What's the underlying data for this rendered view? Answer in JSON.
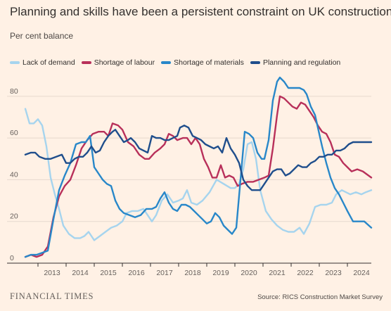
{
  "title": "Planning and skills have been a persistent constraint on UK construction",
  "subtitle": "Per cent balance",
  "brand": "FINANCIAL TIMES",
  "source": "Source: RICS Construction Market Survey",
  "colors": {
    "background": "#fff1e5",
    "grid": "#e6d9ce",
    "axis": "#33302e",
    "lack_of_demand": "#a6d4ee",
    "shortage_of_labour": "#b8305a",
    "shortage_of_materials": "#2887c9",
    "planning_and_regulation": "#1f4e8c"
  },
  "chart_data": {
    "type": "line",
    "title": "Planning and skills have been a persistent constraint on UK construction",
    "ylabel": "Per cent balance",
    "xlim": [
      2012.55,
      2024.85
    ],
    "ylim": [
      0,
      85
    ],
    "yticks": [
      0,
      20,
      40,
      60,
      80
    ],
    "xticks": [
      "2013",
      "2014",
      "2015",
      "2016",
      "2017",
      "2018",
      "2019",
      "2020",
      "2021",
      "2022",
      "2023",
      "2024"
    ],
    "grid": true,
    "legend_position": "top-left",
    "series": [
      {
        "name": "Lack of demand",
        "color": "#a6d4ee",
        "points": [
          [
            2012.55,
            74
          ],
          [
            2012.7,
            67
          ],
          [
            2012.85,
            67
          ],
          [
            2013.0,
            69
          ],
          [
            2013.15,
            66
          ],
          [
            2013.3,
            56
          ],
          [
            2013.45,
            41
          ],
          [
            2013.6,
            33
          ],
          [
            2013.75,
            26
          ],
          [
            2013.9,
            18
          ],
          [
            2014.1,
            14
          ],
          [
            2014.3,
            12
          ],
          [
            2014.5,
            12
          ],
          [
            2014.65,
            13
          ],
          [
            2014.8,
            15
          ],
          [
            2015.0,
            11
          ],
          [
            2015.2,
            13
          ],
          [
            2015.4,
            15
          ],
          [
            2015.6,
            17
          ],
          [
            2015.8,
            18
          ],
          [
            2016.0,
            20
          ],
          [
            2016.15,
            24
          ],
          [
            2016.35,
            25
          ],
          [
            2016.55,
            25
          ],
          [
            2016.75,
            26
          ],
          [
            2016.9,
            23
          ],
          [
            2017.05,
            20
          ],
          [
            2017.2,
            23
          ],
          [
            2017.4,
            30
          ],
          [
            2017.6,
            33
          ],
          [
            2017.8,
            29
          ],
          [
            2018.0,
            30
          ],
          [
            2018.15,
            31
          ],
          [
            2018.3,
            35
          ],
          [
            2018.45,
            29
          ],
          [
            2018.65,
            28
          ],
          [
            2018.85,
            30
          ],
          [
            2019.1,
            34
          ],
          [
            2019.35,
            40
          ],
          [
            2019.6,
            38
          ],
          [
            2019.85,
            36
          ],
          [
            2020.0,
            36
          ],
          [
            2020.15,
            38
          ],
          [
            2020.3,
            45
          ],
          [
            2020.45,
            57
          ],
          [
            2020.6,
            58
          ],
          [
            2020.75,
            50
          ],
          [
            2020.9,
            35
          ],
          [
            2021.1,
            25
          ],
          [
            2021.3,
            21
          ],
          [
            2021.5,
            18
          ],
          [
            2021.7,
            16
          ],
          [
            2021.9,
            15
          ],
          [
            2022.1,
            15
          ],
          [
            2022.3,
            17
          ],
          [
            2022.45,
            14
          ],
          [
            2022.65,
            19
          ],
          [
            2022.85,
            27
          ],
          [
            2023.05,
            28
          ],
          [
            2023.25,
            28
          ],
          [
            2023.45,
            29
          ],
          [
            2023.6,
            33
          ],
          [
            2023.8,
            35
          ],
          [
            2023.95,
            34
          ],
          [
            2024.1,
            33
          ],
          [
            2024.3,
            34
          ],
          [
            2024.5,
            33
          ],
          [
            2024.65,
            34
          ],
          [
            2024.85,
            35
          ]
        ]
      },
      {
        "name": "Shortage of labour",
        "color": "#b8305a",
        "points": [
          [
            2012.55,
            3
          ],
          [
            2012.75,
            4
          ],
          [
            2012.95,
            3
          ],
          [
            2013.15,
            4
          ],
          [
            2013.35,
            8
          ],
          [
            2013.55,
            22
          ],
          [
            2013.75,
            32
          ],
          [
            2013.95,
            37
          ],
          [
            2014.15,
            40
          ],
          [
            2014.35,
            47
          ],
          [
            2014.55,
            55
          ],
          [
            2014.75,
            59
          ],
          [
            2014.95,
            62
          ],
          [
            2015.15,
            63
          ],
          [
            2015.35,
            63
          ],
          [
            2015.5,
            61
          ],
          [
            2015.65,
            67
          ],
          [
            2015.85,
            66
          ],
          [
            2016.0,
            64
          ],
          [
            2016.2,
            58
          ],
          [
            2016.4,
            56
          ],
          [
            2016.6,
            52
          ],
          [
            2016.8,
            50
          ],
          [
            2016.95,
            50
          ],
          [
            2017.15,
            53
          ],
          [
            2017.35,
            55
          ],
          [
            2017.5,
            57
          ],
          [
            2017.65,
            62
          ],
          [
            2017.8,
            61
          ],
          [
            2017.95,
            59
          ],
          [
            2018.15,
            60
          ],
          [
            2018.3,
            60
          ],
          [
            2018.45,
            57
          ],
          [
            2018.6,
            60
          ],
          [
            2018.75,
            57
          ],
          [
            2018.9,
            50
          ],
          [
            2019.05,
            46
          ],
          [
            2019.2,
            41
          ],
          [
            2019.35,
            41
          ],
          [
            2019.5,
            47
          ],
          [
            2019.65,
            41
          ],
          [
            2019.8,
            42
          ],
          [
            2019.95,
            41
          ],
          [
            2020.1,
            37
          ],
          [
            2020.25,
            38
          ],
          [
            2020.45,
            39
          ],
          [
            2020.65,
            39
          ],
          [
            2020.85,
            40
          ],
          [
            2021.05,
            41
          ],
          [
            2021.2,
            42
          ],
          [
            2021.35,
            55
          ],
          [
            2021.5,
            71
          ],
          [
            2021.6,
            80
          ],
          [
            2021.75,
            79
          ],
          [
            2021.9,
            77
          ],
          [
            2022.05,
            75
          ],
          [
            2022.2,
            74
          ],
          [
            2022.35,
            77
          ],
          [
            2022.5,
            76
          ],
          [
            2022.65,
            73
          ],
          [
            2022.8,
            70
          ],
          [
            2022.95,
            66
          ],
          [
            2023.1,
            63
          ],
          [
            2023.25,
            62
          ],
          [
            2023.4,
            58
          ],
          [
            2023.55,
            52
          ],
          [
            2023.7,
            51
          ],
          [
            2023.85,
            48
          ],
          [
            2024.0,
            46
          ],
          [
            2024.15,
            44
          ],
          [
            2024.35,
            45
          ],
          [
            2024.55,
            44
          ],
          [
            2024.85,
            41
          ]
        ]
      },
      {
        "name": "Shortage of materials",
        "color": "#2887c9",
        "points": [
          [
            2012.55,
            3
          ],
          [
            2012.75,
            4
          ],
          [
            2012.95,
            4
          ],
          [
            2013.15,
            5
          ],
          [
            2013.35,
            6
          ],
          [
            2013.55,
            21
          ],
          [
            2013.75,
            35
          ],
          [
            2013.95,
            42
          ],
          [
            2014.15,
            48
          ],
          [
            2014.35,
            57
          ],
          [
            2014.55,
            58
          ],
          [
            2014.7,
            58
          ],
          [
            2014.85,
            61
          ],
          [
            2015.0,
            46
          ],
          [
            2015.15,
            43
          ],
          [
            2015.3,
            40
          ],
          [
            2015.45,
            38
          ],
          [
            2015.6,
            37
          ],
          [
            2015.75,
            30
          ],
          [
            2015.9,
            26
          ],
          [
            2016.05,
            24
          ],
          [
            2016.25,
            23
          ],
          [
            2016.45,
            22
          ],
          [
            2016.65,
            23
          ],
          [
            2016.85,
            26
          ],
          [
            2017.05,
            26
          ],
          [
            2017.2,
            27
          ],
          [
            2017.35,
            31
          ],
          [
            2017.5,
            34
          ],
          [
            2017.65,
            29
          ],
          [
            2017.8,
            26
          ],
          [
            2017.95,
            25
          ],
          [
            2018.1,
            28
          ],
          [
            2018.25,
            28
          ],
          [
            2018.4,
            27
          ],
          [
            2018.55,
            25
          ],
          [
            2018.7,
            23
          ],
          [
            2018.85,
            21
          ],
          [
            2019.0,
            19
          ],
          [
            2019.15,
            20
          ],
          [
            2019.3,
            24
          ],
          [
            2019.45,
            22
          ],
          [
            2019.6,
            18
          ],
          [
            2019.75,
            16
          ],
          [
            2019.9,
            14
          ],
          [
            2020.05,
            17
          ],
          [
            2020.2,
            40
          ],
          [
            2020.35,
            63
          ],
          [
            2020.5,
            62
          ],
          [
            2020.65,
            60
          ],
          [
            2020.8,
            53
          ],
          [
            2020.95,
            50
          ],
          [
            2021.05,
            50
          ],
          [
            2021.2,
            59
          ],
          [
            2021.35,
            78
          ],
          [
            2021.5,
            87
          ],
          [
            2021.6,
            89
          ],
          [
            2021.75,
            87
          ],
          [
            2021.9,
            84
          ],
          [
            2022.1,
            84
          ],
          [
            2022.3,
            84
          ],
          [
            2022.45,
            83
          ],
          [
            2022.55,
            81
          ],
          [
            2022.7,
            75
          ],
          [
            2022.85,
            71
          ],
          [
            2022.95,
            65
          ],
          [
            2023.1,
            56
          ],
          [
            2023.25,
            48
          ],
          [
            2023.4,
            41
          ],
          [
            2023.55,
            36
          ],
          [
            2023.7,
            33
          ],
          [
            2023.85,
            29
          ],
          [
            2024.0,
            25
          ],
          [
            2024.2,
            20
          ],
          [
            2024.4,
            20
          ],
          [
            2024.6,
            20
          ],
          [
            2024.85,
            17
          ]
        ]
      },
      {
        "name": "Planning and regulation",
        "color": "#1f4e8c",
        "points": [
          [
            2012.55,
            52
          ],
          [
            2012.75,
            53
          ],
          [
            2012.9,
            53
          ],
          [
            2013.05,
            51
          ],
          [
            2013.25,
            50
          ],
          [
            2013.45,
            50
          ],
          [
            2013.65,
            51
          ],
          [
            2013.85,
            52
          ],
          [
            2014.0,
            48
          ],
          [
            2014.15,
            48
          ],
          [
            2014.3,
            50
          ],
          [
            2014.45,
            51
          ],
          [
            2014.6,
            51
          ],
          [
            2014.75,
            53
          ],
          [
            2014.9,
            56
          ],
          [
            2015.05,
            53
          ],
          [
            2015.2,
            54
          ],
          [
            2015.35,
            58
          ],
          [
            2015.5,
            61
          ],
          [
            2015.65,
            63
          ],
          [
            2015.75,
            64
          ],
          [
            2015.9,
            61
          ],
          [
            2016.05,
            58
          ],
          [
            2016.2,
            59
          ],
          [
            2016.3,
            60
          ],
          [
            2016.45,
            58
          ],
          [
            2016.6,
            55
          ],
          [
            2016.75,
            54
          ],
          [
            2016.9,
            53
          ],
          [
            2017.05,
            61
          ],
          [
            2017.2,
            60
          ],
          [
            2017.35,
            60
          ],
          [
            2017.5,
            59
          ],
          [
            2017.65,
            59
          ],
          [
            2017.8,
            60
          ],
          [
            2017.95,
            61
          ],
          [
            2018.05,
            65
          ],
          [
            2018.2,
            66
          ],
          [
            2018.35,
            65
          ],
          [
            2018.5,
            61
          ],
          [
            2018.65,
            60
          ],
          [
            2018.8,
            59
          ],
          [
            2018.95,
            57
          ],
          [
            2019.1,
            56
          ],
          [
            2019.25,
            55
          ],
          [
            2019.4,
            56
          ],
          [
            2019.55,
            53
          ],
          [
            2019.7,
            60
          ],
          [
            2019.85,
            55
          ],
          [
            2020.0,
            52
          ],
          [
            2020.15,
            48
          ],
          [
            2020.3,
            40
          ],
          [
            2020.45,
            37
          ],
          [
            2020.6,
            35
          ],
          [
            2020.75,
            35
          ],
          [
            2020.9,
            35
          ],
          [
            2021.05,
            38
          ],
          [
            2021.2,
            41
          ],
          [
            2021.35,
            44
          ],
          [
            2021.5,
            45
          ],
          [
            2021.65,
            45
          ],
          [
            2021.8,
            42
          ],
          [
            2021.95,
            43
          ],
          [
            2022.1,
            45
          ],
          [
            2022.25,
            47
          ],
          [
            2022.4,
            46
          ],
          [
            2022.55,
            46
          ],
          [
            2022.7,
            48
          ],
          [
            2022.85,
            49
          ],
          [
            2023.0,
            51
          ],
          [
            2023.15,
            51
          ],
          [
            2023.3,
            52
          ],
          [
            2023.45,
            52
          ],
          [
            2023.6,
            54
          ],
          [
            2023.75,
            54
          ],
          [
            2023.9,
            55
          ],
          [
            2024.05,
            57
          ],
          [
            2024.2,
            58
          ],
          [
            2024.4,
            58
          ],
          [
            2024.6,
            58
          ],
          [
            2024.85,
            58
          ]
        ]
      }
    ]
  }
}
